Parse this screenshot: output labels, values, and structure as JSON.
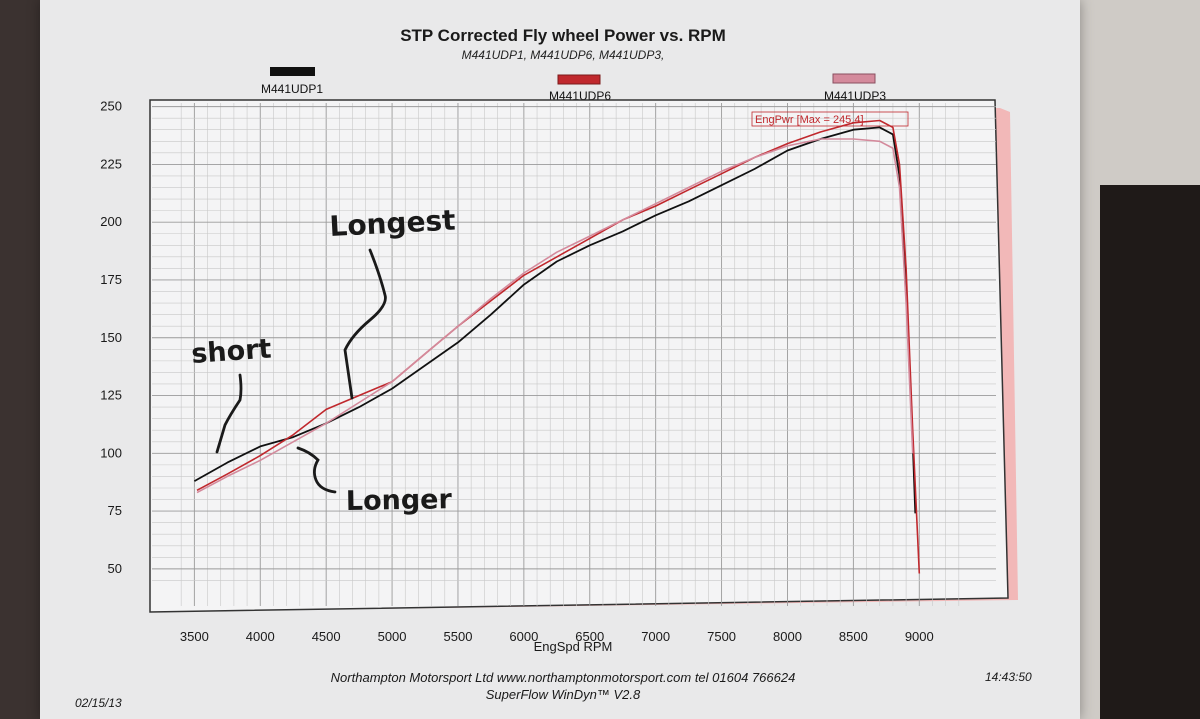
{
  "chart_data": {
    "type": "line",
    "title": "STP Corrected Fly wheel Power vs. RPM",
    "subtitle": "M441UDP1, M441UDP6, M441UDP3,",
    "xlabel": "EngSpd  RPM",
    "ylabel": "",
    "xlim": [
      3300,
      9400
    ],
    "ylim": [
      40,
      252
    ],
    "x_ticks": [
      3500,
      4000,
      4500,
      5000,
      5500,
      6000,
      6500,
      7000,
      7500,
      8000,
      8500,
      9000
    ],
    "y_ticks": [
      50,
      75,
      100,
      125,
      150,
      175,
      200,
      225,
      250
    ],
    "grid": true,
    "legend_position": "top",
    "peak_annotation": "EngPwr [Max = 245.4]",
    "series": [
      {
        "name": "M441UDP1",
        "color": "#111111",
        "points": [
          [
            3500,
            88
          ],
          [
            3750,
            96
          ],
          [
            4000,
            103
          ],
          [
            4250,
            107
          ],
          [
            4500,
            113
          ],
          [
            4750,
            120
          ],
          [
            5000,
            128
          ],
          [
            5250,
            138
          ],
          [
            5500,
            148
          ],
          [
            5750,
            160
          ],
          [
            6000,
            173
          ],
          [
            6250,
            183
          ],
          [
            6500,
            190
          ],
          [
            6750,
            196
          ],
          [
            7000,
            203
          ],
          [
            7250,
            209
          ],
          [
            7500,
            216
          ],
          [
            7750,
            223
          ],
          [
            8000,
            231
          ],
          [
            8250,
            236
          ],
          [
            8500,
            240
          ],
          [
            8700,
            241
          ],
          [
            8800,
            238
          ],
          [
            8850,
            220
          ],
          [
            8900,
            170
          ],
          [
            8950,
            105
          ],
          [
            8970,
            74
          ]
        ]
      },
      {
        "name": "M441UDP6",
        "color": "#c0282d",
        "points": [
          [
            3520,
            84
          ],
          [
            3750,
            91
          ],
          [
            4000,
            99
          ],
          [
            4250,
            108
          ],
          [
            4500,
            119
          ],
          [
            4750,
            125
          ],
          [
            5000,
            131
          ],
          [
            5250,
            143
          ],
          [
            5500,
            155
          ],
          [
            5750,
            166
          ],
          [
            6000,
            177
          ],
          [
            6250,
            185
          ],
          [
            6500,
            193
          ],
          [
            6750,
            201
          ],
          [
            7000,
            207
          ],
          [
            7250,
            214
          ],
          [
            7500,
            221
          ],
          [
            7750,
            228
          ],
          [
            8000,
            234
          ],
          [
            8250,
            239
          ],
          [
            8500,
            243
          ],
          [
            8700,
            244
          ],
          [
            8800,
            241
          ],
          [
            8850,
            225
          ],
          [
            8900,
            180
          ],
          [
            8950,
            110
          ],
          [
            9000,
            48
          ]
        ]
      },
      {
        "name": "M441UDP3",
        "color": "#d48a9c",
        "points": [
          [
            3520,
            83
          ],
          [
            3750,
            90
          ],
          [
            4000,
            97
          ],
          [
            4250,
            105
          ],
          [
            4500,
            113
          ],
          [
            4750,
            122
          ],
          [
            5000,
            131
          ],
          [
            5250,
            143
          ],
          [
            5500,
            155
          ],
          [
            5750,
            167
          ],
          [
            6000,
            178
          ],
          [
            6250,
            187
          ],
          [
            6500,
            194
          ],
          [
            6750,
            201
          ],
          [
            7000,
            208
          ],
          [
            7250,
            215
          ],
          [
            7500,
            222
          ],
          [
            7750,
            228
          ],
          [
            8000,
            233
          ],
          [
            8250,
            236
          ],
          [
            8500,
            236
          ],
          [
            8700,
            235
          ],
          [
            8800,
            232
          ],
          [
            8850,
            215
          ],
          [
            8900,
            165
          ],
          [
            8950,
            100
          ]
        ]
      }
    ],
    "annotations": [
      "Longest",
      "short",
      "Longer"
    ]
  },
  "footer": {
    "line1": "Northampton Motorsport Ltd www.northamptonmotorsport.com tel 01604 766624",
    "line2": "SuperFlow WinDyn™ V2.8",
    "date": "02/15/13",
    "time": "14:43:50"
  }
}
